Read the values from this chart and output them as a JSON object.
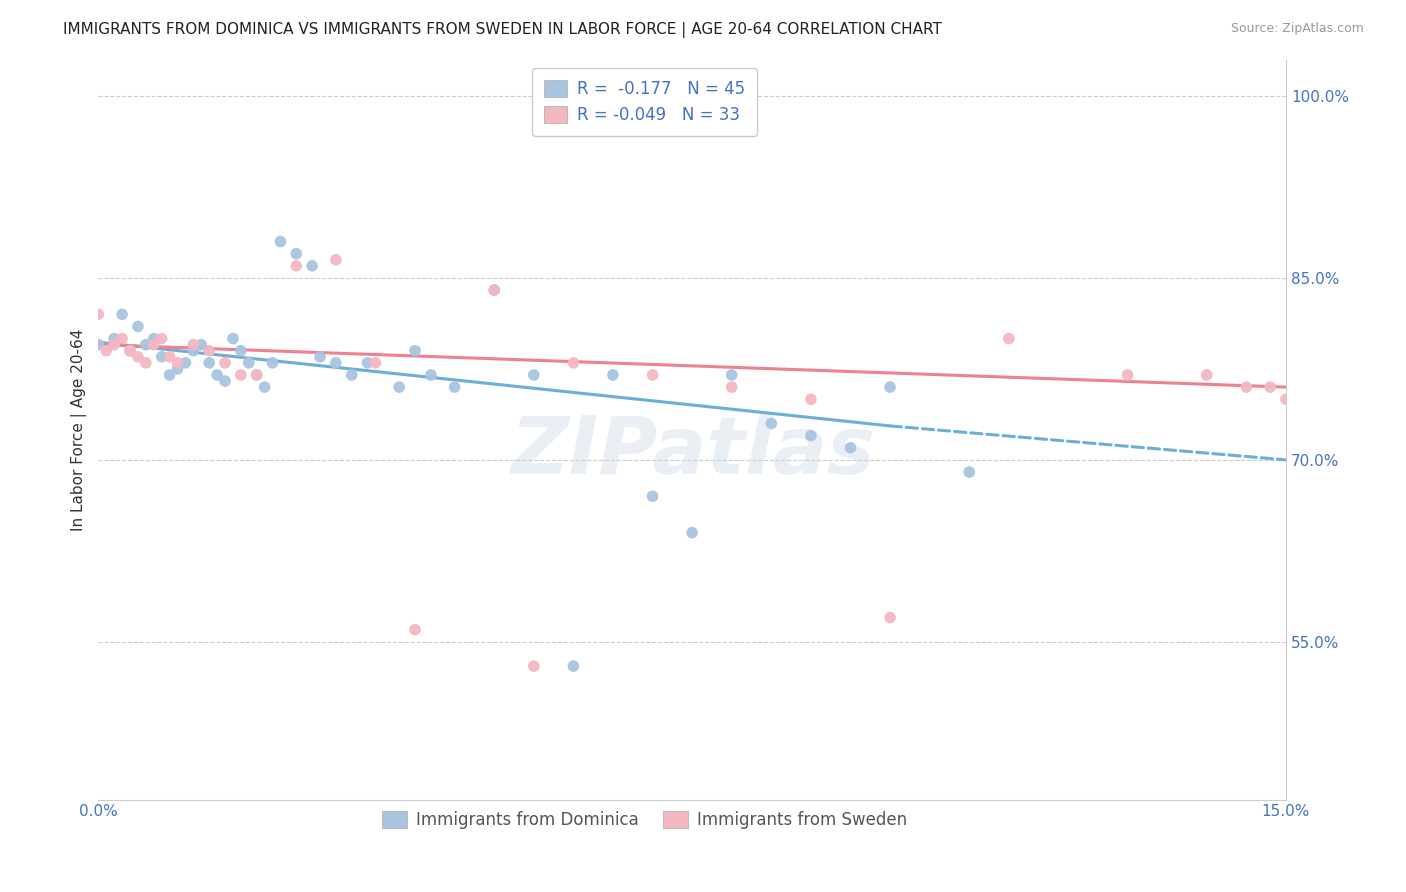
{
  "title": "IMMIGRANTS FROM DOMINICA VS IMMIGRANTS FROM SWEDEN IN LABOR FORCE | AGE 20-64 CORRELATION CHART",
  "source": "Source: ZipAtlas.com",
  "ylabel": "In Labor Force | Age 20-64",
  "xlim": [
    0.0,
    0.15
  ],
  "ylim": [
    0.42,
    1.03
  ],
  "ytick_values": [
    0.55,
    0.7,
    0.85,
    1.0
  ],
  "xtick_values": [
    0.0,
    0.15
  ],
  "watermark": "ZIPatlas",
  "legend_R_dominica": "-0.177",
  "legend_N_dominica": "45",
  "legend_R_sweden": "-0.049",
  "legend_N_sweden": "33",
  "color_dominica": "#a8c4e0",
  "color_sweden": "#f4b8c1",
  "line_color_dominica": "#6baed6",
  "line_color_sweden": "#f08090",
  "dominica_x": [
    0.0,
    0.002,
    0.003,
    0.004,
    0.005,
    0.006,
    0.007,
    0.008,
    0.009,
    0.01,
    0.011,
    0.012,
    0.013,
    0.014,
    0.015,
    0.016,
    0.017,
    0.018,
    0.019,
    0.02,
    0.021,
    0.022,
    0.023,
    0.025,
    0.027,
    0.028,
    0.03,
    0.032,
    0.034,
    0.038,
    0.04,
    0.042,
    0.045,
    0.05,
    0.055,
    0.06,
    0.065,
    0.07,
    0.075,
    0.08,
    0.085,
    0.09,
    0.095,
    0.1,
    0.11
  ],
  "dominica_y": [
    0.795,
    0.8,
    0.82,
    0.79,
    0.81,
    0.795,
    0.8,
    0.785,
    0.77,
    0.775,
    0.78,
    0.79,
    0.795,
    0.78,
    0.77,
    0.765,
    0.8,
    0.79,
    0.78,
    0.77,
    0.76,
    0.78,
    0.88,
    0.87,
    0.86,
    0.785,
    0.78,
    0.77,
    0.78,
    0.76,
    0.79,
    0.77,
    0.76,
    0.84,
    0.77,
    0.53,
    0.77,
    0.67,
    0.64,
    0.77,
    0.73,
    0.72,
    0.71,
    0.76,
    0.69
  ],
  "sweden_x": [
    0.0,
    0.001,
    0.002,
    0.003,
    0.004,
    0.005,
    0.006,
    0.007,
    0.008,
    0.009,
    0.01,
    0.012,
    0.014,
    0.016,
    0.018,
    0.02,
    0.025,
    0.03,
    0.035,
    0.04,
    0.05,
    0.055,
    0.06,
    0.07,
    0.08,
    0.09,
    0.1,
    0.115,
    0.13,
    0.14,
    0.145,
    0.148,
    0.15
  ],
  "sweden_y": [
    0.82,
    0.79,
    0.795,
    0.8,
    0.79,
    0.785,
    0.78,
    0.795,
    0.8,
    0.785,
    0.78,
    0.795,
    0.79,
    0.78,
    0.77,
    0.77,
    0.86,
    0.865,
    0.78,
    0.56,
    0.84,
    0.53,
    0.78,
    0.77,
    0.76,
    0.75,
    0.57,
    0.8,
    0.77,
    0.77,
    0.76,
    0.76,
    0.75
  ],
  "dom_line_x0": 0.0,
  "dom_line_x1": 0.1,
  "dom_line_y0": 0.797,
  "dom_line_y1": 0.728,
  "dom_line_dashed_x0": 0.1,
  "dom_line_dashed_x1": 0.15,
  "dom_line_dashed_y0": 0.728,
  "dom_line_dashed_y1": 0.7,
  "swe_line_x0": 0.0,
  "swe_line_x1": 0.15,
  "swe_line_y0": 0.795,
  "swe_line_y1": 0.76
}
